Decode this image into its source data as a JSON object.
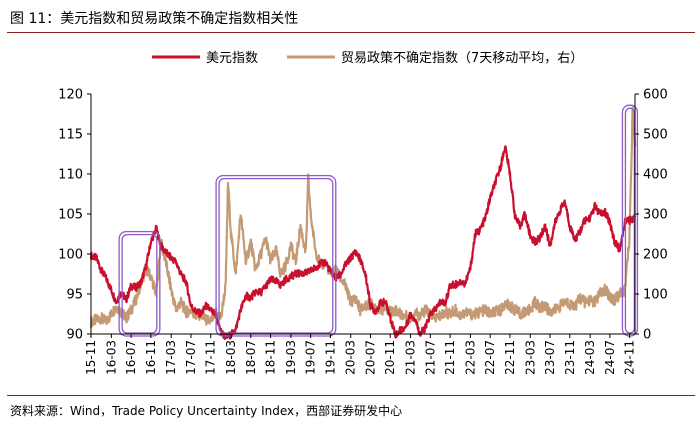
{
  "title": "图 11：美元指数和贸易政策不确定指数相关性",
  "source": "资料来源：Wind，Trade Policy Uncertainty Index，西部证券研发中心",
  "colors": {
    "usd": "#c8102e",
    "tpu": "#c49a74",
    "box": "#8e59c9",
    "rule": "#8a1f1f"
  },
  "chart_data": {
    "type": "line",
    "title": "",
    "xlabel": "",
    "ylabel_left": "",
    "ylabel_right": "",
    "ylim_left": [
      90,
      120
    ],
    "ylim_right": [
      0,
      600
    ],
    "yticks_left": [
      "120",
      "115",
      "110",
      "105",
      "100",
      "95",
      "90"
    ],
    "yticks_right": [
      "600",
      "500",
      "400",
      "300",
      "200",
      "100",
      "0"
    ],
    "x_range": [
      2015.83,
      2024.92
    ],
    "xticks": [
      {
        "label": "15-11",
        "t": 2015.83
      },
      {
        "label": "16-03",
        "t": 2016.17
      },
      {
        "label": "16-07",
        "t": 2016.5
      },
      {
        "label": "16-11",
        "t": 2016.83
      },
      {
        "label": "17-03",
        "t": 2017.17
      },
      {
        "label": "17-07",
        "t": 2017.5
      },
      {
        "label": "17-11",
        "t": 2017.83
      },
      {
        "label": "18-03",
        "t": 2018.17
      },
      {
        "label": "18-07",
        "t": 2018.5
      },
      {
        "label": "18-11",
        "t": 2018.83
      },
      {
        "label": "19-03",
        "t": 2019.17
      },
      {
        "label": "19-07",
        "t": 2019.5
      },
      {
        "label": "19-11",
        "t": 2019.83
      },
      {
        "label": "20-03",
        "t": 2020.17
      },
      {
        "label": "20-07",
        "t": 2020.5
      },
      {
        "label": "20-11",
        "t": 2020.83
      },
      {
        "label": "21-03",
        "t": 2021.17
      },
      {
        "label": "21-07",
        "t": 2021.5
      },
      {
        "label": "21-11",
        "t": 2021.83
      },
      {
        "label": "22-03",
        "t": 2022.17
      },
      {
        "label": "22-07",
        "t": 2022.5
      },
      {
        "label": "22-11",
        "t": 2022.83
      },
      {
        "label": "23-03",
        "t": 2023.17
      },
      {
        "label": "23-07",
        "t": 2023.5
      },
      {
        "label": "23-11",
        "t": 2023.83
      },
      {
        "label": "24-03",
        "t": 2024.17
      },
      {
        "label": "24-07",
        "t": 2024.5
      },
      {
        "label": "24-11",
        "t": 2024.83
      }
    ],
    "legend_position": "top",
    "series": [
      {
        "name": "美元指数",
        "axis": "left",
        "t": [
          2015.83,
          2015.92,
          2016.0,
          2016.08,
          2016.17,
          2016.25,
          2016.33,
          2016.42,
          2016.5,
          2016.58,
          2016.67,
          2016.75,
          2016.83,
          2016.92,
          2017.0,
          2017.08,
          2017.17,
          2017.25,
          2017.33,
          2017.42,
          2017.5,
          2017.58,
          2017.67,
          2017.75,
          2017.83,
          2017.92,
          2018.0,
          2018.08,
          2018.17,
          2018.25,
          2018.33,
          2018.42,
          2018.5,
          2018.58,
          2018.67,
          2018.75,
          2018.83,
          2018.92,
          2019.0,
          2019.08,
          2019.17,
          2019.25,
          2019.33,
          2019.42,
          2019.5,
          2019.58,
          2019.67,
          2019.75,
          2019.83,
          2019.92,
          2020.0,
          2020.08,
          2020.17,
          2020.25,
          2020.33,
          2020.42,
          2020.5,
          2020.58,
          2020.67,
          2020.75,
          2020.83,
          2020.92,
          2021.0,
          2021.08,
          2021.17,
          2021.25,
          2021.33,
          2021.42,
          2021.5,
          2021.58,
          2021.67,
          2021.75,
          2021.83,
          2021.92,
          2022.0,
          2022.08,
          2022.17,
          2022.25,
          2022.33,
          2022.42,
          2022.5,
          2022.58,
          2022.67,
          2022.75,
          2022.83,
          2022.92,
          2023.0,
          2023.08,
          2023.17,
          2023.25,
          2023.33,
          2023.42,
          2023.5,
          2023.58,
          2023.67,
          2023.75,
          2023.83,
          2023.92,
          2024.0,
          2024.08,
          2024.17,
          2024.25,
          2024.33,
          2024.42,
          2024.5,
          2024.58,
          2024.67,
          2024.75,
          2024.83,
          2024.92
        ],
        "values": [
          99.8,
          99.5,
          98.0,
          97.0,
          95.5,
          94.0,
          95.2,
          94.3,
          96.0,
          95.8,
          96.5,
          98.5,
          101.5,
          103.2,
          101.0,
          100.2,
          99.5,
          99.0,
          97.5,
          96.5,
          93.5,
          92.8,
          92.5,
          93.5,
          93.0,
          92.2,
          90.3,
          89.6,
          89.9,
          90.6,
          93.0,
          94.8,
          94.5,
          95.3,
          95.2,
          96.0,
          96.8,
          96.6,
          96.1,
          96.8,
          97.2,
          97.5,
          97.6,
          97.6,
          97.9,
          98.3,
          98.8,
          99.0,
          97.8,
          97.0,
          97.4,
          98.6,
          99.5,
          100.3,
          99.3,
          97.3,
          93.6,
          92.8,
          93.9,
          94.0,
          92.1,
          89.9,
          90.5,
          90.8,
          92.5,
          91.8,
          90.0,
          90.8,
          92.5,
          93.0,
          94.0,
          93.9,
          96.0,
          96.2,
          96.5,
          96.3,
          98.2,
          102.5,
          103.0,
          104.5,
          107.0,
          108.8,
          110.8,
          113.5,
          110.0,
          104.5,
          103.5,
          105.0,
          102.2,
          101.5,
          102.0,
          103.5,
          101.0,
          103.8,
          105.5,
          106.5,
          103.5,
          101.8,
          102.8,
          104.2,
          104.5,
          106.0,
          105.0,
          105.2,
          104.0,
          101.5,
          100.5,
          104.0,
          104.2,
          104.6
        ]
      },
      {
        "name": "贸易政策不确定指数（7天移动平均，右）",
        "axis": "right",
        "t": [
          2015.83,
          2015.92,
          2016.0,
          2016.08,
          2016.17,
          2016.25,
          2016.33,
          2016.42,
          2016.5,
          2016.58,
          2016.67,
          2016.75,
          2016.83,
          2016.92,
          2017.0,
          2017.08,
          2017.17,
          2017.25,
          2017.33,
          2017.42,
          2017.5,
          2017.58,
          2017.67,
          2017.75,
          2017.83,
          2017.92,
          2018.0,
          2018.08,
          2018.12,
          2018.17,
          2018.25,
          2018.33,
          2018.42,
          2018.5,
          2018.58,
          2018.67,
          2018.75,
          2018.83,
          2018.92,
          2019.0,
          2019.08,
          2019.17,
          2019.25,
          2019.33,
          2019.42,
          2019.46,
          2019.5,
          2019.58,
          2019.67,
          2019.75,
          2019.83,
          2019.92,
          2020.0,
          2020.08,
          2020.17,
          2020.25,
          2020.33,
          2020.42,
          2020.5,
          2020.58,
          2020.67,
          2020.75,
          2020.83,
          2020.92,
          2021.0,
          2021.08,
          2021.17,
          2021.25,
          2021.33,
          2021.42,
          2021.5,
          2021.58,
          2021.67,
          2021.75,
          2021.83,
          2021.92,
          2022.0,
          2022.08,
          2022.17,
          2022.25,
          2022.33,
          2022.42,
          2022.5,
          2022.58,
          2022.67,
          2022.75,
          2022.83,
          2022.92,
          2023.0,
          2023.08,
          2023.17,
          2023.25,
          2023.33,
          2023.42,
          2023.5,
          2023.58,
          2023.67,
          2023.75,
          2023.83,
          2023.92,
          2024.0,
          2024.08,
          2024.17,
          2024.25,
          2024.33,
          2024.42,
          2024.5,
          2024.58,
          2024.67,
          2024.75,
          2024.8,
          2024.83,
          2024.88,
          2024.92
        ],
        "values": [
          30,
          35,
          40,
          30,
          50,
          70,
          55,
          40,
          60,
          85,
          130,
          160,
          145,
          100,
          230,
          180,
          110,
          60,
          80,
          55,
          60,
          45,
          50,
          35,
          30,
          55,
          40,
          120,
          380,
          250,
          150,
          300,
          180,
          230,
          160,
          200,
          240,
          180,
          210,
          150,
          170,
          220,
          180,
          270,
          200,
          390,
          300,
          210,
          170,
          180,
          150,
          160,
          140,
          120,
          80,
          90,
          60,
          70,
          75,
          70,
          60,
          65,
          55,
          60,
          50,
          45,
          40,
          55,
          45,
          60,
          50,
          40,
          45,
          55,
          50,
          60,
          45,
          55,
          50,
          50,
          55,
          60,
          50,
          55,
          60,
          75,
          70,
          60,
          50,
          55,
          60,
          80,
          65,
          70,
          55,
          60,
          70,
          80,
          75,
          70,
          90,
          80,
          85,
          80,
          100,
          110,
          95,
          85,
          100,
          110,
          190,
          250,
          560,
          470
        ]
      }
    ],
    "annotations": [
      {
        "type": "box",
        "t_start": 2016.3,
        "t_end": 2016.98,
        "y_low": 90,
        "y_high": 102.8
      },
      {
        "type": "box",
        "t_start": 2017.92,
        "t_end": 2019.92,
        "y_low": 90,
        "y_high": 109.8
      },
      {
        "type": "box",
        "t_start": 2024.71,
        "t_end": 2024.96,
        "y_low": 90,
        "y_high": 118.6
      }
    ]
  }
}
